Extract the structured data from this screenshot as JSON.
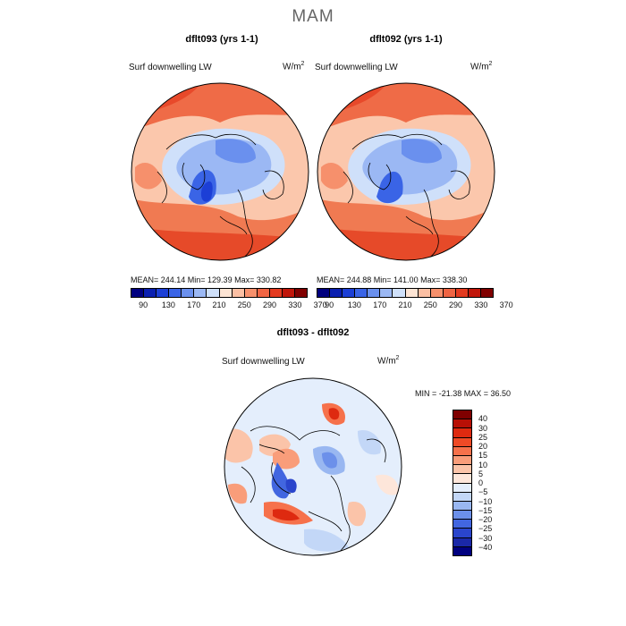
{
  "title": "MAM",
  "top_panels": [
    {
      "title": "dflt093 (yrs 1-1)",
      "variable": "Surf downwelling LW",
      "units": "W/m",
      "units_sup": "2",
      "stats": "MEAN= 244.14   Min= 129.39   Max= 330.82"
    },
    {
      "title": "dflt092 (yrs 1-1)",
      "variable": "Surf downwelling LW",
      "units": "W/m",
      "units_sup": "2",
      "stats": "MEAN= 244.88   Min= 141.00   Max= 338.30"
    }
  ],
  "top_colorbar": {
    "colors": [
      "#00007f",
      "#0a1fb0",
      "#1c3fd6",
      "#3a64e6",
      "#6a90ee",
      "#9bb8f4",
      "#cfe0fa",
      "#fde4d4",
      "#fbbfa3",
      "#f6906c",
      "#ef6443",
      "#e43a1f",
      "#c0160a",
      "#800000"
    ],
    "ticks": [
      "90",
      "130",
      "170",
      "210",
      "250",
      "290",
      "330",
      "370"
    ]
  },
  "diff_panel": {
    "title": "dflt093 - dflt092",
    "variable": "Surf downwelling LW",
    "units": "W/m",
    "units_sup": "2",
    "stats": "MIN = -21.38  MAX =  36.50"
  },
  "diff_colorbar": {
    "colors": [
      "#7f0000",
      "#b81006",
      "#de2a10",
      "#ef4a26",
      "#f6714b",
      "#f99d7a",
      "#fbc4a9",
      "#fde6da",
      "#e4eefc",
      "#c3d7f7",
      "#99b7f1",
      "#6c90ea",
      "#4266e0",
      "#2a45cc",
      "#1a28a8",
      "#00007f"
    ],
    "ticks": [
      "40",
      "30",
      "25",
      "20",
      "15",
      "10",
      "5",
      "0",
      "−5",
      "−10",
      "−15",
      "−20",
      "−25",
      "−30",
      "−40"
    ]
  }
}
